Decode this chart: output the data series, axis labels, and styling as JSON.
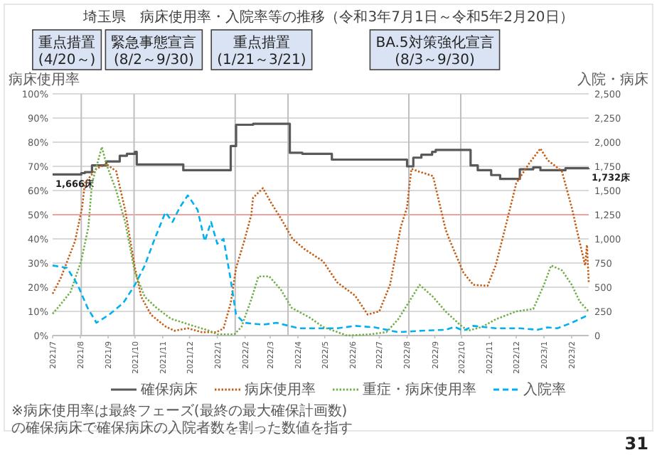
{
  "chart_data": {
    "type": "line",
    "title": "埼玉県　病床使用率・入院率等の推移（令和3年7月1日～令和5年2月20日）",
    "ylabel": "病床使用率",
    "y2label": "入院・病床",
    "xlim": [
      "2021-07-01",
      "2023-02-20"
    ],
    "xticks": [
      {
        "value": "2021-07-01",
        "label": "2021/7"
      },
      {
        "value": "2021-08-01",
        "label": "2021/8"
      },
      {
        "value": "2021-09-01",
        "label": "2021/9"
      },
      {
        "value": "2021-10-01",
        "label": "2021/10"
      },
      {
        "value": "2021-11-01",
        "label": "2021/11"
      },
      {
        "value": "2021-12-01",
        "label": "2021/12"
      },
      {
        "value": "2022-01-01",
        "label": "2022/1"
      },
      {
        "value": "2022-02-01",
        "label": "2022/2"
      },
      {
        "value": "2022-03-01",
        "label": "2022/3"
      },
      {
        "value": "2022-04-01",
        "label": "2022/4"
      },
      {
        "value": "2022-05-01",
        "label": "2022/5"
      },
      {
        "value": "2022-06-01",
        "label": "2022/6"
      },
      {
        "value": "2022-07-01",
        "label": "2022/7"
      },
      {
        "value": "2022-08-01",
        "label": "2022/8"
      },
      {
        "value": "2022-09-01",
        "label": "2022/9"
      },
      {
        "value": "2022-10-01",
        "label": "2022/10"
      },
      {
        "value": "2022-11-01",
        "label": "2022/11"
      },
      {
        "value": "2022-12-01",
        "label": "2022/12"
      },
      {
        "value": "2023-01-01",
        "label": "2023/1"
      },
      {
        "value": "2023-02-01",
        "label": "2023/2"
      }
    ],
    "ylim": [
      0,
      100
    ],
    "yticks": [
      {
        "value": 0,
        "label": "0%"
      },
      {
        "value": 10,
        "label": "10%"
      },
      {
        "value": 20,
        "label": "20%"
      },
      {
        "value": 30,
        "label": "30%"
      },
      {
        "value": 40,
        "label": "40%"
      },
      {
        "value": 50,
        "label": "50%"
      },
      {
        "value": 60,
        "label": "60%"
      },
      {
        "value": 70,
        "label": "70%"
      },
      {
        "value": 80,
        "label": "80%"
      },
      {
        "value": 90,
        "label": "90%"
      },
      {
        "value": 100,
        "label": "100%"
      }
    ],
    "y2lim": [
      0,
      2500
    ],
    "y2ticks": [
      {
        "value": 0,
        "label": "0"
      },
      {
        "value": 250,
        "label": "250"
      },
      {
        "value": 500,
        "label": "500"
      },
      {
        "value": 750,
        "label": "750"
      },
      {
        "value": 1000,
        "label": "1,000"
      },
      {
        "value": 1250,
        "label": "1,250"
      },
      {
        "value": 1500,
        "label": "1,500"
      },
      {
        "value": 1750,
        "label": "1,750"
      },
      {
        "value": 2000,
        "label": "2,000"
      },
      {
        "value": 2250,
        "label": "2,250"
      },
      {
        "value": 2500,
        "label": "2,500"
      }
    ],
    "grid": "y",
    "legend": "bottom",
    "ref_lines": [
      {
        "axis": "y",
        "value": 50,
        "color": "#f4a0a0"
      },
      {
        "axis": "x",
        "value": "2021-08-02",
        "color": "#bfbfbf"
      },
      {
        "axis": "x",
        "value": "2021-09-30",
        "color": "#bfbfbf"
      },
      {
        "axis": "x",
        "value": "2022-01-21",
        "color": "#bfbfbf"
      },
      {
        "axis": "x",
        "value": "2022-03-21",
        "color": "#bfbfbf"
      },
      {
        "axis": "x",
        "value": "2022-08-03",
        "color": "#bfbfbf"
      },
      {
        "axis": "x",
        "value": "2022-09-30",
        "color": "#bfbfbf"
      }
    ],
    "annotations": [
      "重点措置\n(4/20～)",
      "緊急事態宣言\n(8/2～9/30)",
      "重点措置\n(1/21～3/21)",
      "BA.5対策強化宣言\n(8/3～9/30)",
      "※病床使用率は最終フェーズ(最終の最大確保計画数)の確保病床で確保病床の入院者数を割った数値を指す",
      "31"
    ],
    "series": [
      {
        "name": "確保病床",
        "type": "step",
        "axis": "y2",
        "color": "#595959",
        "line_style": "solid",
        "x": [
          "2021-07-01",
          "2021-08-02",
          "2021-08-06",
          "2021-08-14",
          "2021-08-30",
          "2021-09-14",
          "2021-09-22",
          "2021-10-01",
          "2021-10-03",
          "2021-11-24",
          "2022-01-16",
          "2022-01-22",
          "2022-02-10",
          "2022-03-23",
          "2022-04-06",
          "2022-04-29",
          "2022-05-09",
          "2022-08-01",
          "2022-08-08",
          "2022-08-17",
          "2022-08-29",
          "2022-09-02",
          "2022-10-11",
          "2022-10-19",
          "2022-11-03",
          "2022-11-13",
          "2022-12-05",
          "2022-12-20",
          "2022-12-28",
          "2023-01-25",
          "2023-02-20"
        ],
        "values": [
          1666,
          1680,
          1690,
          1760,
          1800,
          1860,
          1880,
          1900,
          1770,
          1710,
          1960,
          2180,
          2190,
          1890,
          1880,
          1880,
          1820,
          1750,
          1840,
          1870,
          1900,
          1920,
          1760,
          1710,
          1660,
          1620,
          1720,
          1740,
          1710,
          1730,
          1732
        ],
        "value_labels": [
          "1,666床",
          null,
          null,
          null,
          null,
          null,
          null,
          null,
          null,
          null,
          null,
          null,
          null,
          null,
          null,
          null,
          null,
          null,
          null,
          null,
          null,
          null,
          null,
          null,
          null,
          null,
          null,
          null,
          null,
          null,
          "1,732床"
        ]
      },
      {
        "name": "病床使用率",
        "color": "#c55a11",
        "line_style": "dotted",
        "x": [
          "2021-07-01",
          "2021-07-10",
          "2021-07-26",
          "2021-08-03",
          "2021-08-06",
          "2021-08-19",
          "2021-08-30",
          "2021-09-10",
          "2021-09-20",
          "2021-10-01",
          "2021-10-08",
          "2021-10-19",
          "2021-11-04",
          "2021-11-14",
          "2021-11-29",
          "2021-12-15",
          "2021-12-31",
          "2022-01-08",
          "2022-01-16",
          "2022-01-22",
          "2022-01-31",
          "2022-02-08",
          "2022-02-10",
          "2022-02-21",
          "2022-03-02",
          "2022-03-13",
          "2022-03-26",
          "2022-04-09",
          "2022-04-29",
          "2022-05-15",
          "2022-06-04",
          "2022-06-18",
          "2022-07-01",
          "2022-07-13",
          "2022-07-25",
          "2022-08-01",
          "2022-08-03",
          "2022-08-06",
          "2022-08-13",
          "2022-08-30",
          "2022-09-13",
          "2022-09-17",
          "2022-10-03",
          "2022-10-14",
          "2022-10-30",
          "2022-11-08",
          "2022-11-19",
          "2022-12-01",
          "2022-12-15",
          "2022-12-28",
          "2023-01-05",
          "2023-01-21",
          "2023-02-01",
          "2023-02-09",
          "2023-02-16",
          "2023-02-18",
          "2023-02-20"
        ],
        "values": [
          17.3,
          23.7,
          39,
          53,
          63,
          69,
          71,
          68,
          52,
          28,
          16,
          8.6,
          3.8,
          2,
          3,
          1.4,
          1.4,
          3,
          13.5,
          28,
          39,
          50,
          57,
          61,
          55,
          48.5,
          40,
          35.6,
          30.8,
          22,
          16.5,
          8.7,
          10,
          21,
          45,
          53,
          60,
          69,
          68,
          66,
          44,
          40,
          26,
          21,
          20.6,
          29,
          45,
          63,
          71,
          77.4,
          72.6,
          68,
          53,
          40,
          29,
          37.5,
          22
        ]
      },
      {
        "name": "重症・病床使用率",
        "color": "#70ad47",
        "line_style": "dotted",
        "x": [
          "2021-07-01",
          "2021-07-09",
          "2021-07-21",
          "2021-08-02",
          "2021-08-10",
          "2021-08-14",
          "2021-08-25",
          "2021-08-30",
          "2021-09-10",
          "2021-09-20",
          "2021-10-01",
          "2021-10-12",
          "2021-10-25",
          "2021-11-10",
          "2021-12-01",
          "2021-12-23",
          "2022-01-01",
          "2022-01-20",
          "2022-01-28",
          "2022-02-08",
          "2022-02-16",
          "2022-02-28",
          "2022-03-13",
          "2022-03-25",
          "2022-04-14",
          "2022-04-29",
          "2022-05-26",
          "2022-06-20",
          "2022-07-09",
          "2022-07-22",
          "2022-08-05",
          "2022-08-15",
          "2022-08-30",
          "2022-09-13",
          "2022-09-29",
          "2022-10-08",
          "2022-10-24",
          "2022-11-08",
          "2022-12-01",
          "2022-12-20",
          "2023-01-01",
          "2023-01-09",
          "2023-01-21",
          "2023-02-01",
          "2023-02-10",
          "2023-02-20"
        ],
        "values": [
          9,
          12.5,
          18,
          31,
          45,
          63,
          78,
          71,
          60,
          47,
          26,
          16,
          11.5,
          7,
          4.5,
          2,
          0.5,
          0.5,
          3.6,
          15,
          24.5,
          24.5,
          19,
          11.5,
          7.5,
          3.6,
          0,
          0.5,
          1.4,
          6.7,
          15,
          21,
          16,
          10,
          4.5,
          2,
          3.6,
          6.7,
          10,
          11,
          21,
          29,
          27,
          21,
          14,
          10
        ]
      },
      {
        "name": "入院率",
        "color": "#00b0f0",
        "line_style": "dashed",
        "x": [
          "2021-07-01",
          "2021-07-17",
          "2021-07-29",
          "2021-08-09",
          "2021-08-19",
          "2021-09-02",
          "2021-09-18",
          "2021-10-01",
          "2021-10-12",
          "2021-10-22",
          "2021-11-04",
          "2021-11-12",
          "2021-11-20",
          "2021-11-29",
          "2021-12-10",
          "2021-12-18",
          "2021-12-25",
          "2022-01-01",
          "2022-01-08",
          "2022-01-16",
          "2022-01-22",
          "2022-01-31",
          "2022-02-21",
          "2022-03-08",
          "2022-04-02",
          "2022-05-15",
          "2022-06-04",
          "2022-06-26",
          "2022-07-22",
          "2022-08-17",
          "2022-09-13",
          "2022-09-23",
          "2022-10-03",
          "2022-10-14",
          "2022-11-08",
          "2022-12-05",
          "2022-12-25",
          "2023-01-05",
          "2023-01-16",
          "2023-02-01",
          "2023-02-20"
        ],
        "values": [
          29,
          28,
          21,
          11.5,
          5.3,
          8.6,
          13.5,
          21,
          29,
          39,
          51,
          47,
          53,
          58,
          52,
          39,
          47,
          38,
          40,
          23,
          8.6,
          5.3,
          4.5,
          5.3,
          3,
          3,
          4,
          3.4,
          1.4,
          2,
          2.4,
          3.6,
          2,
          4,
          3,
          3,
          2.4,
          3.4,
          3,
          5.3,
          8.6
        ]
      }
    ]
  }
}
